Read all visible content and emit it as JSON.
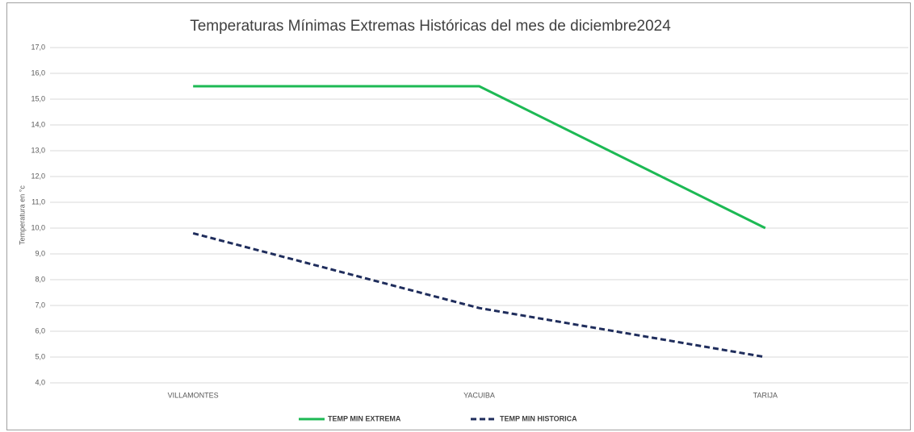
{
  "chart_data": {
    "type": "line",
    "title": "Temperaturas Mínimas Extremas Históricas del mes de diciembre2024",
    "y_label": "Temperatura en °c",
    "categories": [
      "VILLAMONTES",
      "YACUIBA",
      "TARIJA"
    ],
    "series": [
      {
        "name": "TEMP MIN EXTREMA",
        "color": "#1db954",
        "line_style": "solid",
        "values": [
          15.5,
          15.5,
          10.0
        ]
      },
      {
        "name": "TEMP MIN HISTORICA",
        "color": "#1f2d5c",
        "line_style": "dashed",
        "values": [
          9.8,
          6.9,
          5.0
        ]
      }
    ],
    "ylim": [
      4,
      17
    ],
    "yticks": [
      {
        "value": 4,
        "label": "4,0"
      },
      {
        "value": 5,
        "label": "5,0"
      },
      {
        "value": 6,
        "label": "6,0"
      },
      {
        "value": 7,
        "label": "7,0"
      },
      {
        "value": 8,
        "label": "8,0"
      },
      {
        "value": 9,
        "label": "9,0"
      },
      {
        "value": 10,
        "label": "10,0"
      },
      {
        "value": 11,
        "label": "11,0"
      },
      {
        "value": 12,
        "label": "12,0"
      },
      {
        "value": 13,
        "label": "13,0"
      },
      {
        "value": 14,
        "label": "14,0"
      },
      {
        "value": 15,
        "label": "15,0"
      },
      {
        "value": 16,
        "label": "16,0"
      },
      {
        "value": 17,
        "label": "17,0"
      }
    ],
    "grid": true,
    "legend": "bottom"
  }
}
